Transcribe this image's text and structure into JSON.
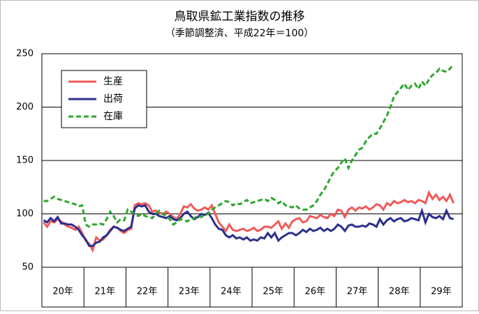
{
  "chart_data": {
    "type": "line",
    "title": "鳥取県鉱工業指数の推移",
    "subtitle": "（季節調整済、平成22年＝100）",
    "year_labels": [
      "20年",
      "21年",
      "22年",
      "23年",
      "24年",
      "25年",
      "26年",
      "27年",
      "28年",
      "29年"
    ],
    "ylim": [
      50,
      250
    ],
    "yticks": [
      50,
      100,
      150,
      200,
      250
    ],
    "grid": true,
    "series": [
      {
        "name": "生産",
        "color": "#f05a5a",
        "dash": false,
        "values": [
          92,
          88,
          93,
          92,
          95,
          93,
          90,
          88,
          87,
          85,
          88,
          82,
          75,
          72,
          66,
          78,
          75,
          76,
          80,
          85,
          88,
          87,
          84,
          82,
          85,
          86,
          108,
          110,
          109,
          110,
          108,
          102,
          103,
          101,
          100,
          102,
          100,
          97,
          95,
          100,
          107,
          106,
          109,
          105,
          103,
          104,
          106,
          104,
          108,
          100,
          92,
          88,
          84,
          90,
          85,
          84,
          85,
          86,
          84,
          85,
          87,
          84,
          85,
          88,
          88,
          87,
          90,
          93,
          86,
          91,
          87,
          93,
          95,
          96,
          92,
          93,
          98,
          97,
          96,
          99,
          97,
          96,
          100,
          98,
          104,
          103,
          97,
          104,
          106,
          103,
          106,
          105,
          107,
          104,
          106,
          109,
          108,
          104,
          110,
          108,
          112,
          110,
          111,
          113,
          111,
          112,
          110,
          113,
          112,
          110,
          120,
          114,
          118,
          113,
          116,
          112,
          118,
          110
        ]
      },
      {
        "name": "出荷",
        "color": "#2b2f8c",
        "dash": false,
        "values": [
          94,
          92,
          96,
          93,
          97,
          91,
          91,
          90,
          90,
          88,
          85,
          80,
          76,
          70,
          70,
          73,
          74,
          78,
          80,
          84,
          88,
          87,
          85,
          84,
          86,
          88,
          105,
          108,
          107,
          108,
          102,
          100,
          100,
          98,
          97,
          96,
          98,
          95,
          94,
          96,
          100,
          102,
          98,
          95,
          97,
          100,
          99,
          101,
          96,
          90,
          86,
          85,
          80,
          78,
          80,
          77,
          78,
          76,
          78,
          75,
          76,
          75,
          78,
          77,
          82,
          78,
          82,
          75,
          78,
          80,
          82,
          82,
          80,
          82,
          85,
          83,
          86,
          84,
          85,
          87,
          84,
          86,
          84,
          86,
          90,
          88,
          84,
          89,
          90,
          88,
          88,
          89,
          88,
          91,
          90,
          88,
          95,
          90,
          94,
          96,
          93,
          95,
          96,
          93,
          94,
          96,
          95,
          94,
          103,
          92,
          100,
          97,
          96,
          98,
          95,
          103,
          96,
          95
        ]
      },
      {
        "name": "在庫",
        "color": "#2ea62e",
        "dash": true,
        "values": [
          112,
          112,
          114,
          116,
          114,
          113,
          112,
          111,
          110,
          109,
          107,
          108,
          90,
          88,
          90,
          90,
          91,
          90,
          95,
          102,
          98,
          92,
          95,
          94,
          104,
          102,
          100,
          98,
          100,
          98,
          97,
          96,
          100,
          103,
          100,
          98,
          95,
          90,
          92,
          95,
          94,
          93,
          95,
          96,
          98,
          97,
          99,
          100,
          104,
          106,
          108,
          110,
          112,
          111,
          108,
          110,
          109,
          111,
          113,
          110,
          111,
          112,
          113,
          114,
          112,
          115,
          113,
          110,
          112,
          108,
          107,
          106,
          108,
          105,
          104,
          104,
          106,
          108,
          112,
          118,
          122,
          128,
          135,
          140,
          143,
          148,
          152,
          143,
          150,
          155,
          160,
          162,
          168,
          172,
          175,
          175,
          180,
          186,
          192,
          200,
          210,
          214,
          218,
          222,
          216,
          220,
          222,
          217,
          224,
          220,
          226,
          230,
          232,
          236,
          234,
          233,
          236,
          240
        ]
      }
    ]
  }
}
